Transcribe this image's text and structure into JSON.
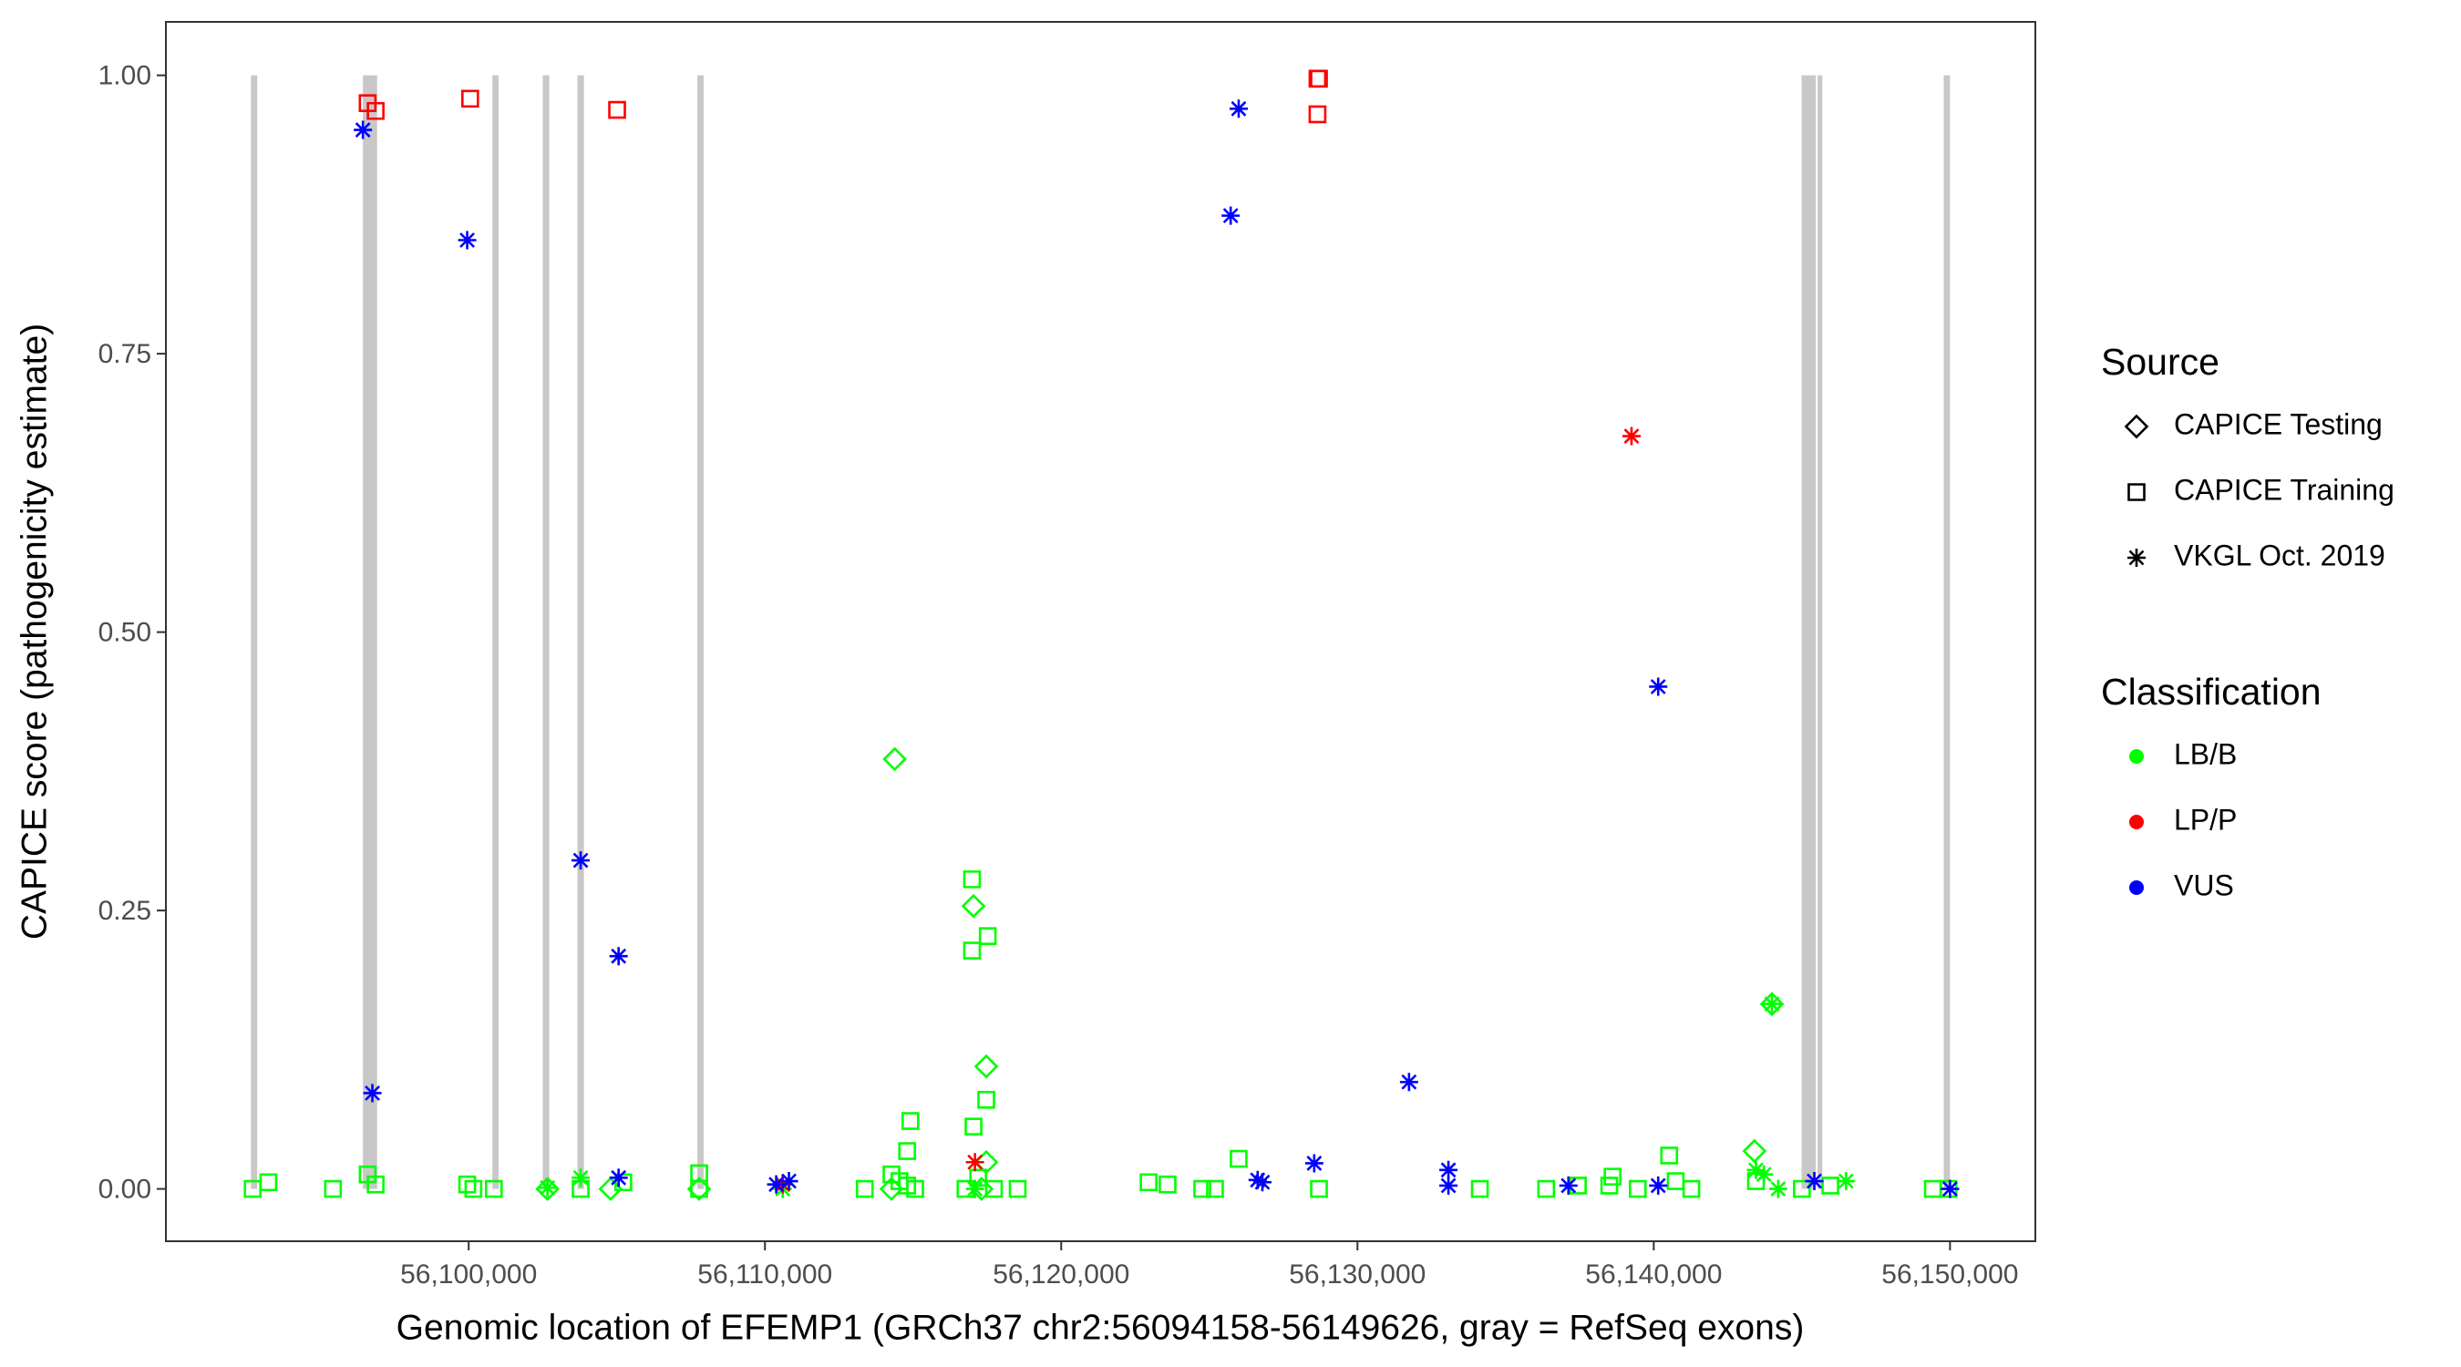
{
  "chart_data": {
    "type": "scatter",
    "x_label": "Genomic location of EFEMP1 (GRCh37 chr2:56094158-56149626, gray = RefSeq exons)",
    "y_label": "CAPICE score (pathogenicity estimate)",
    "xlim": [
      56089780,
      56152880
    ],
    "ylim": [
      -0.047,
      1.048
    ],
    "xticks": [
      {
        "value": 56100000,
        "label": "56,100,000"
      },
      {
        "value": 56110000,
        "label": "56,110,000"
      },
      {
        "value": 56120000,
        "label": "56,120,000"
      },
      {
        "value": 56130000,
        "label": "56,130,000"
      },
      {
        "value": 56140000,
        "label": "56,140,000"
      },
      {
        "value": 56150000,
        "label": "56,150,000"
      }
    ],
    "yticks": [
      {
        "value": 0,
        "label": "0.00"
      },
      {
        "value": 0.25,
        "label": "0.25"
      },
      {
        "value": 0.5,
        "label": "0.50"
      },
      {
        "value": 0.75,
        "label": "0.75"
      },
      {
        "value": 1,
        "label": "1.00"
      }
    ],
    "grid": false,
    "legend_position": "right",
    "exon_color": "#c8c8c8",
    "exons": [
      [
        56092650,
        56092860
      ],
      [
        56096430,
        56096910
      ],
      [
        56100800,
        56101010
      ],
      [
        56102500,
        56102720
      ],
      [
        56103670,
        56103890
      ],
      [
        56107720,
        56107930
      ],
      [
        56144990,
        56145470
      ],
      [
        56145530,
        56145690
      ],
      [
        56149790,
        56150000
      ]
    ],
    "source_legend": {
      "title": "Source",
      "entries": [
        {
          "label": "CAPICE Testing",
          "shape": "diamond"
        },
        {
          "label": "CAPICE Training",
          "shape": "square"
        },
        {
          "label": "VKGL Oct. 2019",
          "shape": "asterisk"
        }
      ]
    },
    "classification_legend": {
      "title": "Classification",
      "entries": [
        {
          "label": "LB/B",
          "color": "#00ff00"
        },
        {
          "label": "LP/P",
          "color": "#ff0000"
        },
        {
          "label": "VUS",
          "color": "#0000ff"
        }
      ]
    },
    "series": [
      {
        "shape": "square",
        "color": "#00ff00",
        "x": [
          56116990,
          56116990,
          56117520,
          56117470,
          56114910,
          56117040,
          56125990,
          56140520,
          56114800,
          56096590,
          56107780,
          56138610,
          56093240,
          56092710,
          56095420,
          56096860,
          56099950,
          56100160,
          56100850,
          56103780,
          56105220,
          56107780,
          56113370,
          56114270,
          56114540,
          56114800,
          56115070,
          56116770,
          56117200,
          56117730,
          56118530,
          56122950,
          56123590,
          56124760,
          56125190,
          56128700,
          56134130,
          56136370,
          56137440,
          56138500,
          56139460,
          56140740,
          56141270,
          56143450,
          56145000,
          56145960,
          56149420,
          56149950
        ],
        "values": [
          0.278,
          0.214,
          0.227,
          0.08,
          0.061,
          0.056,
          0.027,
          0.03,
          0.034,
          0.013,
          0.014,
          0.011,
          0.006,
          0,
          0,
          0.004,
          0.004,
          0,
          0,
          0,
          0.006,
          0,
          0,
          0.013,
          0.007,
          0.003,
          0,
          0,
          0.01,
          0,
          0,
          0.006,
          0.004,
          0,
          0,
          0,
          0,
          0,
          0.003,
          0.003,
          0,
          0.007,
          0,
          0.007,
          0,
          0.003,
          0,
          0
        ]
      },
      {
        "shape": "diamond",
        "color": "#00ff00",
        "x": [
          56114380,
          56117040,
          56117470,
          56143400,
          56143990,
          56117470,
          56102660,
          56104790,
          56107780,
          56114270,
          56117310
        ],
        "values": [
          0.386,
          0.254,
          0.11,
          0.034,
          0.166,
          0.024,
          0,
          0,
          0,
          0,
          0
        ]
      },
      {
        "shape": "asterisk",
        "color": "#00ff00",
        "x": [
          56102660,
          56103780,
          56143990,
          56143450,
          56143720,
          56144200,
          56146490,
          56110600,
          56117090
        ],
        "values": [
          0.001,
          0.01,
          0.166,
          0.017,
          0.013,
          0,
          0.007,
          0,
          0
        ]
      },
      {
        "shape": "square",
        "color": "#ff0000",
        "x": [
          56096590,
          56096860,
          56100050,
          56105010,
          56128650,
          56128700,
          56128650
        ],
        "values": [
          0.975,
          0.968,
          0.979,
          0.969,
          0.997,
          0.997,
          0.965
        ]
      },
      {
        "shape": "asterisk",
        "color": "#ff0000",
        "x": [
          56139250,
          56117090,
          56110600
        ],
        "values": [
          0.676,
          0.024,
          0.004
        ]
      },
      {
        "shape": "asterisk",
        "color": "#0000ff",
        "x": [
          56096430,
          56096750,
          56099950,
          56103780,
          56105060,
          56105060,
          56125990,
          56125720,
          56126630,
          56126790,
          56128540,
          56131740,
          56133070,
          56133070,
          56137120,
          56140150,
          56140150,
          56145420,
          56150000,
          56110380,
          56110810
        ],
        "values": [
          0.951,
          0.086,
          0.852,
          0.295,
          0.209,
          0.01,
          0.97,
          0.874,
          0.008,
          0.006,
          0.023,
          0.096,
          0.017,
          0.003,
          0.003,
          0.451,
          0.003,
          0.007,
          0,
          0.004,
          0.007
        ]
      }
    ]
  }
}
